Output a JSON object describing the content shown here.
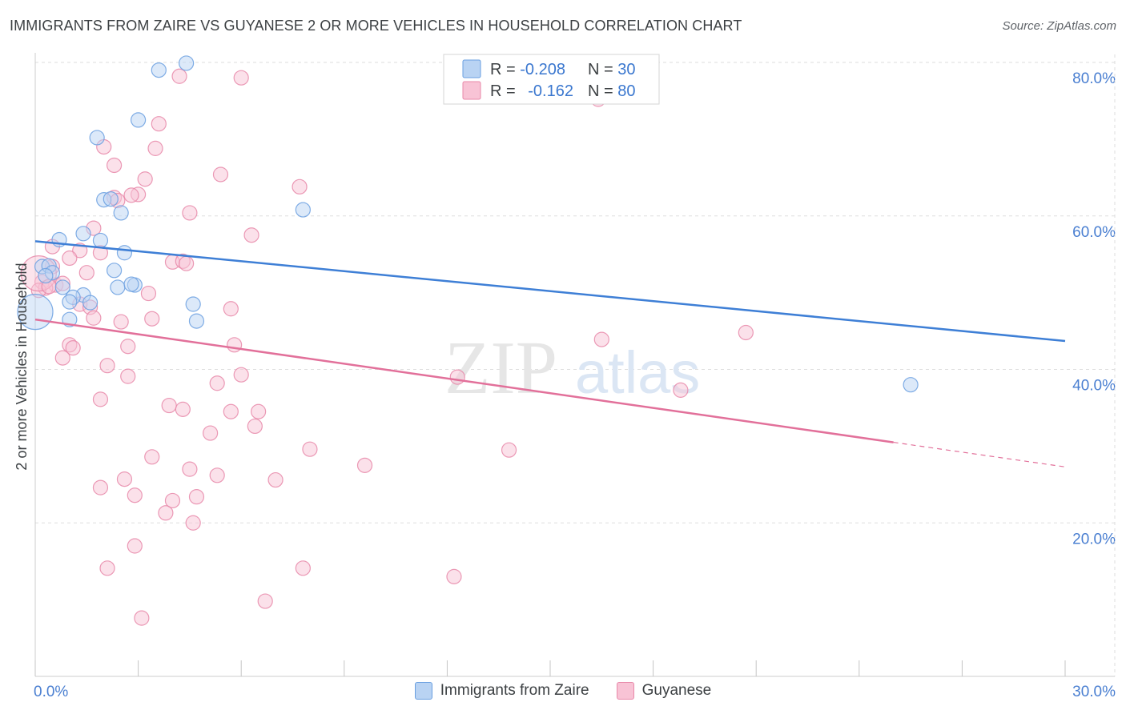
{
  "chart_data": {
    "type": "scatter",
    "title": "IMMIGRANTS FROM ZAIRE VS GUYANESE 2 OR MORE VEHICLES IN HOUSEHOLD CORRELATION CHART",
    "source": "Source: ZipAtlas.com",
    "xlabel": "",
    "ylabel": "2 or more Vehicles in Household",
    "xlim": [
      0,
      30
    ],
    "ylim": [
      0,
      80
    ],
    "x_tick_labels": [
      "0.0%",
      "30.0%"
    ],
    "y_ticks": [
      20,
      40,
      60,
      80
    ],
    "y_tick_labels": [
      "20.0%",
      "40.0%",
      "60.0%",
      "80.0%"
    ],
    "grid": true,
    "watermark": {
      "zip": "ZIP",
      "atlas": "atlas"
    },
    "legend_stats": [
      {
        "r_label": "R = ",
        "r_value": "-0.208",
        "n_label": "N = ",
        "n_value": "30"
      },
      {
        "r_label": "R = ",
        "r_value": "-0.162",
        "n_label": "N = ",
        "n_value": "80"
      }
    ],
    "colors": {
      "zaire_fill": "#b9d3f3",
      "zaire_stroke": "#6a9fe0",
      "zaire_line": "#3e7fd6",
      "guy_fill": "#f8c3d5",
      "guy_stroke": "#e888a9",
      "guy_line": "#e2709a",
      "value_text": "#3a77cf",
      "axis_text": "#4a7fd1",
      "grid": "#dedede"
    },
    "series": [
      {
        "name": "Immigrants from Zaire",
        "trend": {
          "x0": 0,
          "y0": 56.7,
          "x1": 30,
          "y1": 43.7
        },
        "points": [
          {
            "x": 3.6,
            "y": 79.0
          },
          {
            "x": 4.4,
            "y": 79.9
          },
          {
            "x": 3.0,
            "y": 72.5
          },
          {
            "x": 1.8,
            "y": 70.2
          },
          {
            "x": 2.0,
            "y": 62.1
          },
          {
            "x": 2.2,
            "y": 62.2
          },
          {
            "x": 2.5,
            "y": 60.4
          },
          {
            "x": 7.8,
            "y": 60.8
          },
          {
            "x": 1.4,
            "y": 57.7
          },
          {
            "x": 0.7,
            "y": 56.9
          },
          {
            "x": 1.9,
            "y": 56.8
          },
          {
            "x": 2.6,
            "y": 55.2
          },
          {
            "x": 0.2,
            "y": 53.4
          },
          {
            "x": 0.4,
            "y": 53.5
          },
          {
            "x": 0.5,
            "y": 52.6
          },
          {
            "x": 2.3,
            "y": 52.9
          },
          {
            "x": 2.4,
            "y": 50.7
          },
          {
            "x": 2.9,
            "y": 51.0
          },
          {
            "x": 2.8,
            "y": 51.1
          },
          {
            "x": 0.8,
            "y": 50.7
          },
          {
            "x": 1.4,
            "y": 49.7
          },
          {
            "x": 1.1,
            "y": 49.4
          },
          {
            "x": 1.0,
            "y": 48.8
          },
          {
            "x": 1.6,
            "y": 48.7
          },
          {
            "x": 4.6,
            "y": 48.5
          },
          {
            "x": 0.0,
            "y": 47.5,
            "big": true
          },
          {
            "x": 1.0,
            "y": 46.5
          },
          {
            "x": 4.7,
            "y": 46.3
          },
          {
            "x": 25.5,
            "y": 38.0
          },
          {
            "x": 0.3,
            "y": 52.2
          }
        ]
      },
      {
        "name": "Guyanese",
        "trend": {
          "x0": 0,
          "y0": 46.5,
          "x1": 25.0,
          "y1": 30.5,
          "dash_x1": 30,
          "dash_y1": 27.3
        },
        "points": [
          {
            "x": 4.2,
            "y": 78.2
          },
          {
            "x": 6.0,
            "y": 78.0
          },
          {
            "x": 16.4,
            "y": 75.2
          },
          {
            "x": 3.6,
            "y": 72.0
          },
          {
            "x": 2.0,
            "y": 69.0
          },
          {
            "x": 3.5,
            "y": 68.8
          },
          {
            "x": 2.3,
            "y": 66.6
          },
          {
            "x": 5.4,
            "y": 65.4
          },
          {
            "x": 3.2,
            "y": 64.8
          },
          {
            "x": 7.7,
            "y": 63.8
          },
          {
            "x": 3.0,
            "y": 62.8
          },
          {
            "x": 2.3,
            "y": 62.4
          },
          {
            "x": 2.4,
            "y": 62.0
          },
          {
            "x": 4.5,
            "y": 60.4
          },
          {
            "x": 1.7,
            "y": 58.4
          },
          {
            "x": 6.3,
            "y": 57.5
          },
          {
            "x": 0.5,
            "y": 56.0
          },
          {
            "x": 1.3,
            "y": 55.5
          },
          {
            "x": 1.0,
            "y": 54.5
          },
          {
            "x": 4.0,
            "y": 54.0
          },
          {
            "x": 4.3,
            "y": 54.1
          },
          {
            "x": 0.5,
            "y": 53.4
          },
          {
            "x": 1.5,
            "y": 52.6
          },
          {
            "x": 0.2,
            "y": 51.4
          },
          {
            "x": 0.6,
            "y": 51.0
          },
          {
            "x": 0.8,
            "y": 51.2
          },
          {
            "x": 0.3,
            "y": 50.6
          },
          {
            "x": 0.1,
            "y": 50.3
          },
          {
            "x": 3.3,
            "y": 49.9
          },
          {
            "x": 1.3,
            "y": 48.5
          },
          {
            "x": 1.6,
            "y": 48.1
          },
          {
            "x": 5.7,
            "y": 47.9
          },
          {
            "x": 1.7,
            "y": 46.7
          },
          {
            "x": 2.5,
            "y": 46.2
          },
          {
            "x": 3.4,
            "y": 46.6
          },
          {
            "x": 20.7,
            "y": 44.8
          },
          {
            "x": 16.5,
            "y": 43.9
          },
          {
            "x": 1.0,
            "y": 43.2
          },
          {
            "x": 1.1,
            "y": 42.8
          },
          {
            "x": 2.7,
            "y": 43.0
          },
          {
            "x": 5.8,
            "y": 43.2
          },
          {
            "x": 0.8,
            "y": 41.5
          },
          {
            "x": 2.1,
            "y": 40.5
          },
          {
            "x": 2.7,
            "y": 39.1
          },
          {
            "x": 6.0,
            "y": 39.3
          },
          {
            "x": 12.3,
            "y": 39.0
          },
          {
            "x": 5.3,
            "y": 38.2
          },
          {
            "x": 18.8,
            "y": 37.3
          },
          {
            "x": 1.9,
            "y": 36.1
          },
          {
            "x": 3.9,
            "y": 35.3
          },
          {
            "x": 4.3,
            "y": 34.8
          },
          {
            "x": 5.7,
            "y": 34.5
          },
          {
            "x": 6.5,
            "y": 34.5
          },
          {
            "x": 6.4,
            "y": 32.6
          },
          {
            "x": 5.1,
            "y": 31.7
          },
          {
            "x": 8.0,
            "y": 29.6
          },
          {
            "x": 13.8,
            "y": 29.5
          },
          {
            "x": 3.4,
            "y": 28.6
          },
          {
            "x": 9.6,
            "y": 27.5
          },
          {
            "x": 4.5,
            "y": 27.0
          },
          {
            "x": 2.6,
            "y": 25.7
          },
          {
            "x": 5.3,
            "y": 26.2
          },
          {
            "x": 7.0,
            "y": 25.6
          },
          {
            "x": 1.9,
            "y": 24.6
          },
          {
            "x": 2.9,
            "y": 23.6
          },
          {
            "x": 4.7,
            "y": 23.4
          },
          {
            "x": 4.0,
            "y": 22.9
          },
          {
            "x": 3.8,
            "y": 21.3
          },
          {
            "x": 4.6,
            "y": 20.0
          },
          {
            "x": 2.9,
            "y": 17.0
          },
          {
            "x": 2.1,
            "y": 14.1
          },
          {
            "x": 7.8,
            "y": 14.1
          },
          {
            "x": 12.2,
            "y": 13.0
          },
          {
            "x": 6.7,
            "y": 9.8
          },
          {
            "x": 3.1,
            "y": 7.6
          },
          {
            "x": 0.1,
            "y": 52.5,
            "big": true
          },
          {
            "x": 0.4,
            "y": 50.8
          },
          {
            "x": 4.4,
            "y": 53.8
          },
          {
            "x": 1.9,
            "y": 55.2
          },
          {
            "x": 2.8,
            "y": 62.7
          }
        ]
      }
    ]
  }
}
